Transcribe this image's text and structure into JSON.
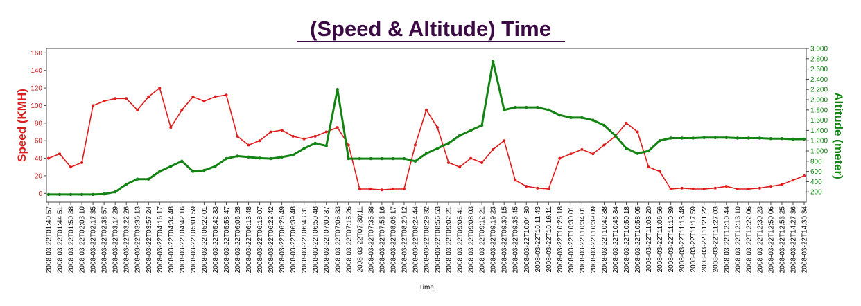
{
  "chart_data": {
    "type": "line",
    "title": "(Speed & Altitude) Time",
    "xlabel": "Time",
    "ylabel_left": "Speed (KMH)",
    "ylabel_right": "Altitude (meter)",
    "ylim_left": [
      -10,
      165
    ],
    "ylim_right": [
      0,
      3000
    ],
    "yticks_left": [
      "0",
      "20",
      "40",
      "60",
      "80",
      "100",
      "120",
      "140",
      "160"
    ],
    "yticks_right": [
      "200",
      "400",
      "600",
      "800",
      "1.000",
      "1.200",
      "1.400",
      "1.600",
      "1.800",
      "2.000",
      "2.200",
      "2.400",
      "2.600",
      "2.800",
      "3.000"
    ],
    "x_categories": [
      "2008-03-22T01:40:57",
      "2008-03-22T01:44:51",
      "2008-03-22T01:50:38",
      "2008-03-22T02:03:10",
      "2008-03-22T02:17:35",
      "2008-03-22T02:38:57",
      "2008-03-22T03:14:29",
      "2008-03-22T03:22:26",
      "2008-03-22T03:36:13",
      "2008-03-22T03:57:24",
      "2008-03-22T04:16:17",
      "2008-03-22T04:34:48",
      "2008-03-22T04:42:16",
      "2008-03-22T05:01:59",
      "2008-03-22T05:22:01",
      "2008-03-22T05:42:33",
      "2008-03-22T05:58:47",
      "2008-03-22T06:06:28",
      "2008-03-22T06:13:48",
      "2008-03-22T06:18:07",
      "2008-03-22T06:22:42",
      "2008-03-22T06:26:49",
      "2008-03-22T06:39:48",
      "2008-03-22T06:43:31",
      "2008-03-22T06:50:48",
      "2008-03-22T07:00:37",
      "2008-03-22T07:06:33",
      "2008-03-22T07:15:26",
      "2008-03-22T07:30:11",
      "2008-03-22T07:35:38",
      "2008-03-22T07:53:16",
      "2008-03-22T08:06:17",
      "2008-03-22T08:20:12",
      "2008-03-22T08:24:44",
      "2008-03-22T08:29:32",
      "2008-03-22T08:56:53",
      "2008-03-22T09:02:21",
      "2008-03-22T09:05:41",
      "2008-03-22T09:08:03",
      "2008-03-22T09:12:21",
      "2008-03-22T09:19:23",
      "2008-03-22T09:30:15",
      "2008-03-22T09:35:45",
      "2008-03-22T10:04:30",
      "2008-03-22T10:11:43",
      "2008-03-22T10:16:11",
      "2008-03-22T10:26:18",
      "2008-03-22T10:30:01",
      "2008-03-22T10:34:01",
      "2008-03-22T10:39:09",
      "2008-03-22T10:42:38",
      "2008-03-22T10:45:34",
      "2008-03-22T10:50:18",
      "2008-03-22T10:58:05",
      "2008-03-22T11:03:20",
      "2008-03-22T11:06:56",
      "2008-03-22T11:10:39",
      "2008-03-22T11:13:48",
      "2008-03-22T11:17:59",
      "2008-03-22T11:21:22",
      "2008-03-22T11:27:03",
      "2008-03-22T12:10:44",
      "2008-03-22T12:13:10",
      "2008-03-22T12:22:06",
      "2008-03-22T12:30:23",
      "2008-03-22T12:50:06",
      "2008-03-22T12:53:25",
      "2008-03-22T14:27:36",
      "2008-03-22T14:30:34"
    ],
    "series": [
      {
        "name": "Speed (KMH)",
        "axis": "left",
        "color": "#e01b1b",
        "values": [
          40,
          45,
          30,
          35,
          100,
          105,
          108,
          108,
          95,
          110,
          120,
          75,
          95,
          110,
          105,
          110,
          112,
          65,
          55,
          60,
          70,
          72,
          65,
          62,
          65,
          70,
          75,
          55,
          5,
          5,
          4,
          5,
          5,
          55,
          95,
          75,
          35,
          30,
          40,
          35,
          50,
          60,
          15,
          8,
          6,
          5,
          40,
          45,
          50,
          45,
          55,
          65,
          80,
          70,
          30,
          25,
          5,
          6,
          5,
          5,
          6,
          8,
          5,
          5,
          6,
          8,
          10,
          15,
          20
        ]
      },
      {
        "name": "Altitude (meter)",
        "axis": "right",
        "color": "#138313",
        "values": [
          150,
          150,
          150,
          150,
          150,
          160,
          200,
          350,
          450,
          450,
          600,
          700,
          800,
          600,
          620,
          700,
          850,
          900,
          880,
          860,
          850,
          880,
          920,
          1050,
          1150,
          1100,
          2200,
          850,
          850,
          850,
          850,
          850,
          850,
          800,
          950,
          1050,
          1150,
          1300,
          1400,
          1500,
          2750,
          1800,
          1850,
          1850,
          1850,
          1800,
          1700,
          1650,
          1650,
          1600,
          1500,
          1300,
          1050,
          950,
          1000,
          1200,
          1250,
          1250,
          1250,
          1260,
          1260,
          1260,
          1250,
          1250,
          1250,
          1240,
          1240,
          1230,
          1230
        ]
      }
    ],
    "grid": false,
    "legend": "none"
  }
}
